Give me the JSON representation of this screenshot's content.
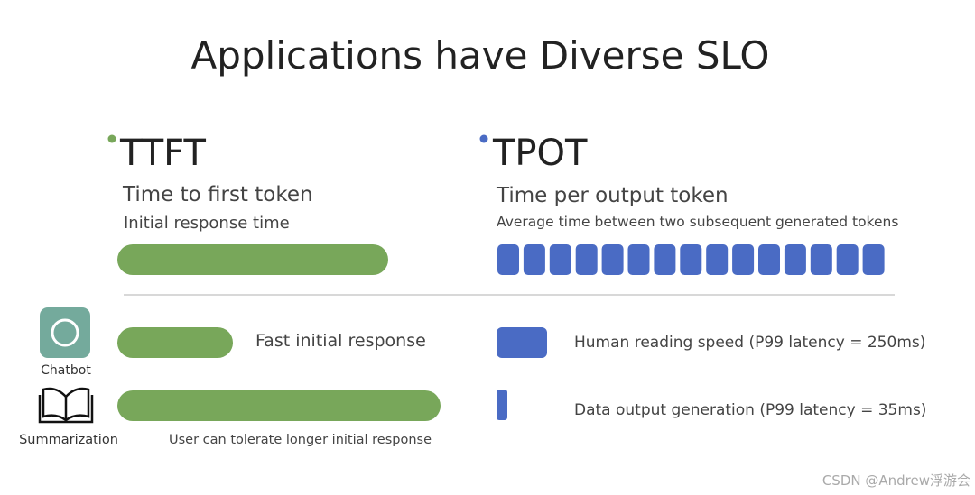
{
  "title": "Applications have Diverse SLO",
  "ttft": {
    "heading": "TTFT",
    "subtitle": "Time to first token",
    "description": "Initial response time"
  },
  "tpot": {
    "heading": "TPOT",
    "subtitle": "Time per output token",
    "description": "Average time between two subsequent generated tokens"
  },
  "rows": [
    {
      "app": "Chatbot",
      "ttft_note": "Fast initial response",
      "tpot_note": "Human reading speed (P99 latency = 250ms)"
    },
    {
      "app": "Summarization",
      "ttft_note": "User can tolerate longer initial response",
      "tpot_note": "Data output generation (P99 latency = 35ms)"
    }
  ],
  "watermark": "CSDN @Andrew浮游会"
}
